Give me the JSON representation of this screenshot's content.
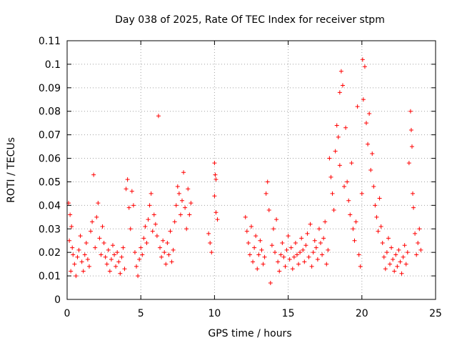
{
  "chart_data": {
    "type": "scatter",
    "title": "Day 038 of 2025, Rate Of TEC Index for receiver stpm",
    "xlabel": "GPS time / hours",
    "ylabel": "ROTI / TECUs",
    "xlim": [
      0,
      25
    ],
    "ylim": [
      0,
      0.11
    ],
    "xticks": [
      0,
      5,
      10,
      15,
      20,
      25
    ],
    "xtick_labels": [
      "0",
      "5",
      "10",
      "15",
      "20",
      "25"
    ],
    "yticks": [
      0,
      0.01,
      0.02,
      0.03,
      0.04,
      0.05,
      0.06,
      0.07,
      0.08,
      0.09,
      0.1,
      0.11
    ],
    "ytick_labels": [
      "0",
      "0.01",
      "0.02",
      "0.03",
      "0.04",
      "0.05",
      "0.06",
      "0.07",
      "0.08",
      "0.09",
      "0.1",
      "0.11"
    ],
    "grid": true,
    "marker": "plus",
    "color": "#ff0000",
    "points": [
      [
        0.1,
        0.041
      ],
      [
        0.2,
        0.036
      ],
      [
        0.3,
        0.031
      ],
      [
        0.15,
        0.025
      ],
      [
        0.4,
        0.019
      ],
      [
        0.5,
        0.015
      ],
      [
        0.25,
        0.012
      ],
      [
        0.6,
        0.01
      ],
      [
        0.35,
        0.022
      ],
      [
        0.7,
        0.018
      ],
      [
        0.8,
        0.021
      ],
      [
        0.9,
        0.027
      ],
      [
        1.0,
        0.016
      ],
      [
        1.1,
        0.012
      ],
      [
        1.2,
        0.019
      ],
      [
        1.3,
        0.024
      ],
      [
        1.4,
        0.017
      ],
      [
        1.5,
        0.014
      ],
      [
        1.6,
        0.029
      ],
      [
        1.7,
        0.033
      ],
      [
        1.8,
        0.053
      ],
      [
        1.9,
        0.022
      ],
      [
        2.0,
        0.035
      ],
      [
        2.1,
        0.041
      ],
      [
        2.2,
        0.026
      ],
      [
        2.3,
        0.019
      ],
      [
        2.4,
        0.031
      ],
      [
        2.5,
        0.024
      ],
      [
        2.6,
        0.018
      ],
      [
        2.7,
        0.015
      ],
      [
        2.8,
        0.021
      ],
      [
        2.9,
        0.012
      ],
      [
        3.0,
        0.017
      ],
      [
        3.1,
        0.023
      ],
      [
        3.2,
        0.019
      ],
      [
        3.3,
        0.014
      ],
      [
        3.4,
        0.02
      ],
      [
        3.5,
        0.016
      ],
      [
        3.6,
        0.011
      ],
      [
        3.7,
        0.018
      ],
      [
        3.8,
        0.022
      ],
      [
        3.9,
        0.013
      ],
      [
        4.0,
        0.047
      ],
      [
        4.1,
        0.051
      ],
      [
        4.2,
        0.039
      ],
      [
        4.3,
        0.03
      ],
      [
        4.4,
        0.046
      ],
      [
        4.5,
        0.04
      ],
      [
        4.6,
        0.02
      ],
      [
        4.7,
        0.014
      ],
      [
        4.8,
        0.01
      ],
      [
        4.9,
        0.017
      ],
      [
        5.0,
        0.022
      ],
      [
        5.1,
        0.019
      ],
      [
        5.2,
        0.026
      ],
      [
        5.3,
        0.031
      ],
      [
        5.4,
        0.024
      ],
      [
        5.5,
        0.034
      ],
      [
        5.6,
        0.04
      ],
      [
        5.7,
        0.045
      ],
      [
        5.8,
        0.029
      ],
      [
        5.9,
        0.036
      ],
      [
        6.0,
        0.032
      ],
      [
        6.1,
        0.027
      ],
      [
        6.2,
        0.078
      ],
      [
        6.3,
        0.022
      ],
      [
        6.4,
        0.018
      ],
      [
        6.5,
        0.025
      ],
      [
        6.6,
        0.02
      ],
      [
        6.7,
        0.015
      ],
      [
        6.8,
        0.024
      ],
      [
        6.9,
        0.019
      ],
      [
        7.0,
        0.029
      ],
      [
        7.1,
        0.016
      ],
      [
        7.2,
        0.021
      ],
      [
        7.3,
        0.033
      ],
      [
        7.4,
        0.04
      ],
      [
        7.5,
        0.048
      ],
      [
        7.6,
        0.045
      ],
      [
        7.7,
        0.036
      ],
      [
        7.8,
        0.042
      ],
      [
        7.9,
        0.054
      ],
      [
        8.0,
        0.039
      ],
      [
        8.1,
        0.03
      ],
      [
        8.2,
        0.047
      ],
      [
        8.3,
        0.036
      ],
      [
        8.4,
        0.041
      ],
      [
        9.6,
        0.028
      ],
      [
        9.7,
        0.024
      ],
      [
        9.8,
        0.02
      ],
      [
        10.0,
        0.058
      ],
      [
        10.05,
        0.053
      ],
      [
        10.1,
        0.051
      ],
      [
        10.0,
        0.044
      ],
      [
        10.1,
        0.037
      ],
      [
        10.2,
        0.034
      ],
      [
        12.1,
        0.035
      ],
      [
        12.2,
        0.029
      ],
      [
        12.3,
        0.024
      ],
      [
        12.4,
        0.019
      ],
      [
        12.5,
        0.031
      ],
      [
        12.6,
        0.016
      ],
      [
        12.7,
        0.022
      ],
      [
        12.8,
        0.027
      ],
      [
        12.9,
        0.013
      ],
      [
        13.0,
        0.019
      ],
      [
        13.1,
        0.025
      ],
      [
        13.2,
        0.021
      ],
      [
        13.3,
        0.015
      ],
      [
        13.4,
        0.018
      ],
      [
        13.5,
        0.045
      ],
      [
        13.6,
        0.05
      ],
      [
        13.7,
        0.038
      ],
      [
        13.8,
        0.007
      ],
      [
        13.9,
        0.023
      ],
      [
        14.0,
        0.03
      ],
      [
        14.1,
        0.02
      ],
      [
        14.2,
        0.034
      ],
      [
        14.3,
        0.016
      ],
      [
        14.4,
        0.012
      ],
      [
        14.5,
        0.019
      ],
      [
        14.6,
        0.024
      ],
      [
        14.7,
        0.018
      ],
      [
        14.8,
        0.014
      ],
      [
        14.9,
        0.021
      ],
      [
        15.0,
        0.027
      ],
      [
        15.1,
        0.017
      ],
      [
        15.2,
        0.022
      ],
      [
        15.3,
        0.013
      ],
      [
        15.4,
        0.018
      ],
      [
        15.5,
        0.024
      ],
      [
        15.6,
        0.019
      ],
      [
        15.7,
        0.015
      ],
      [
        15.8,
        0.02
      ],
      [
        15.9,
        0.026
      ],
      [
        16.0,
        0.021
      ],
      [
        16.1,
        0.016
      ],
      [
        16.2,
        0.023
      ],
      [
        16.3,
        0.028
      ],
      [
        16.4,
        0.018
      ],
      [
        16.5,
        0.032
      ],
      [
        16.6,
        0.014
      ],
      [
        16.7,
        0.02
      ],
      [
        16.8,
        0.025
      ],
      [
        16.9,
        0.022
      ],
      [
        17.0,
        0.017
      ],
      [
        17.1,
        0.03
      ],
      [
        17.2,
        0.024
      ],
      [
        17.3,
        0.019
      ],
      [
        17.4,
        0.026
      ],
      [
        17.5,
        0.033
      ],
      [
        17.6,
        0.015
      ],
      [
        17.7,
        0.021
      ],
      [
        17.8,
        0.06
      ],
      [
        17.9,
        0.052
      ],
      [
        18.0,
        0.045
      ],
      [
        18.1,
        0.038
      ],
      [
        18.2,
        0.063
      ],
      [
        18.3,
        0.074
      ],
      [
        18.4,
        0.069
      ],
      [
        18.5,
        0.057
      ],
      [
        18.6,
        0.097
      ],
      [
        18.7,
        0.091
      ],
      [
        18.5,
        0.088
      ],
      [
        18.8,
        0.048
      ],
      [
        18.9,
        0.073
      ],
      [
        19.0,
        0.05
      ],
      [
        19.1,
        0.042
      ],
      [
        19.2,
        0.036
      ],
      [
        19.3,
        0.058
      ],
      [
        19.4,
        0.03
      ],
      [
        19.5,
        0.025
      ],
      [
        19.6,
        0.033
      ],
      [
        19.7,
        0.082
      ],
      [
        19.8,
        0.019
      ],
      [
        19.9,
        0.014
      ],
      [
        20.0,
        0.045
      ],
      [
        20.05,
        0.102
      ],
      [
        20.1,
        0.085
      ],
      [
        20.2,
        0.099
      ],
      [
        20.3,
        0.075
      ],
      [
        20.4,
        0.066
      ],
      [
        20.5,
        0.079
      ],
      [
        20.6,
        0.055
      ],
      [
        20.7,
        0.062
      ],
      [
        20.8,
        0.048
      ],
      [
        20.9,
        0.04
      ],
      [
        21.0,
        0.035
      ],
      [
        21.1,
        0.029
      ],
      [
        21.2,
        0.043
      ],
      [
        21.3,
        0.031
      ],
      [
        21.4,
        0.024
      ],
      [
        21.5,
        0.018
      ],
      [
        21.6,
        0.013
      ],
      [
        21.7,
        0.02
      ],
      [
        21.8,
        0.026
      ],
      [
        21.9,
        0.015
      ],
      [
        22.0,
        0.022
      ],
      [
        22.1,
        0.017
      ],
      [
        22.2,
        0.012
      ],
      [
        22.3,
        0.019
      ],
      [
        22.4,
        0.014
      ],
      [
        22.5,
        0.021
      ],
      [
        22.6,
        0.016
      ],
      [
        22.7,
        0.011
      ],
      [
        22.8,
        0.018
      ],
      [
        22.9,
        0.023
      ],
      [
        23.0,
        0.015
      ],
      [
        23.1,
        0.02
      ],
      [
        23.2,
        0.058
      ],
      [
        23.3,
        0.08
      ],
      [
        23.35,
        0.072
      ],
      [
        23.4,
        0.065
      ],
      [
        23.45,
        0.045
      ],
      [
        23.5,
        0.039
      ],
      [
        23.6,
        0.028
      ],
      [
        23.7,
        0.019
      ],
      [
        23.8,
        0.024
      ],
      [
        23.9,
        0.03
      ],
      [
        24.0,
        0.021
      ]
    ]
  }
}
